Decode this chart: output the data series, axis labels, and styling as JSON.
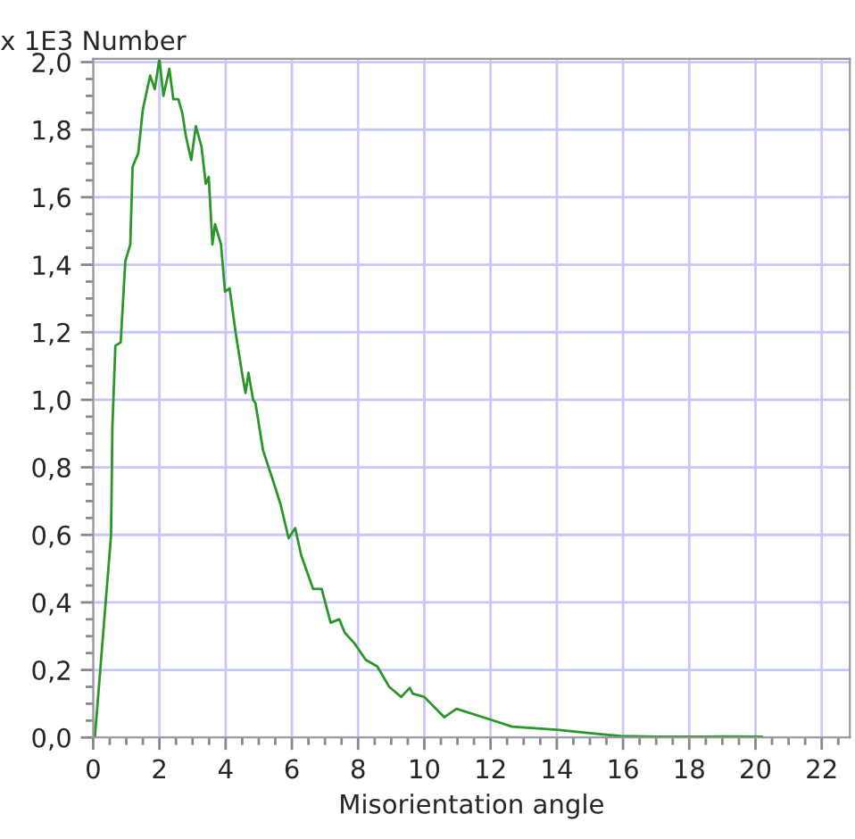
{
  "chart_data": {
    "type": "line",
    "xlabel": "Misorientation angle",
    "ylabel": "x 1E3 Number",
    "x": [
      0,
      0.05,
      0.54,
      0.58,
      0.67,
      0.83,
      0.97,
      1.12,
      1.19,
      1.36,
      1.5,
      1.72,
      1.86,
      2.0,
      2.12,
      2.3,
      2.42,
      2.57,
      2.69,
      2.8,
      2.96,
      3.1,
      3.27,
      3.4,
      3.49,
      3.6,
      3.68,
      3.86,
      3.98,
      4.12,
      4.3,
      4.51,
      4.6,
      4.69,
      4.83,
      4.9,
      5.13,
      5.4,
      5.66,
      5.9,
      6.1,
      6.28,
      6.64,
      6.9,
      7.17,
      7.43,
      7.6,
      7.88,
      8.23,
      8.58,
      8.94,
      9.3,
      9.56,
      9.65,
      10.0,
      10.6,
      10.97,
      12.0,
      12.65,
      14.0,
      15.2,
      15.93,
      17.0,
      18.4,
      19.1,
      20.2
    ],
    "series": [
      {
        "color": "#2a962a",
        "values": [
          0.0,
          0.0,
          0.6,
          0.92,
          1.16,
          1.17,
          1.41,
          1.46,
          1.69,
          1.73,
          1.86,
          1.96,
          1.92,
          2.01,
          1.9,
          1.98,
          1.89,
          1.89,
          1.85,
          1.78,
          1.71,
          1.81,
          1.75,
          1.64,
          1.66,
          1.46,
          1.52,
          1.46,
          1.32,
          1.33,
          1.2,
          1.07,
          1.02,
          1.08,
          1.0,
          0.99,
          0.85,
          0.77,
          0.69,
          0.59,
          0.62,
          0.54,
          0.44,
          0.44,
          0.34,
          0.35,
          0.31,
          0.28,
          0.23,
          0.21,
          0.15,
          0.12,
          0.147,
          0.13,
          0.12,
          0.06,
          0.085,
          0.053,
          0.032,
          0.023,
          0.011,
          0.004,
          0.002,
          0.002,
          0.003,
          0.002
        ]
      }
    ],
    "xlim": [
      0,
      22.85
    ],
    "ylim": [
      0,
      2.01
    ],
    "xticks": [
      0,
      {
        "value": 0.5,
        "label": null
      },
      {
        "value": 1,
        "label": null
      },
      {
        "value": 1.5,
        "label": null
      },
      2,
      {
        "value": 2.5,
        "label": null
      },
      {
        "value": 3,
        "label": null
      },
      {
        "value": 3.5,
        "label": null
      },
      4,
      {
        "value": 4.5,
        "label": null
      },
      {
        "value": 5,
        "label": null
      },
      {
        "value": 5.5,
        "label": null
      },
      6,
      {
        "value": 6.5,
        "label": null
      },
      {
        "value": 7,
        "label": null
      },
      {
        "value": 7.5,
        "label": null
      },
      8,
      {
        "value": 8.5,
        "label": null
      },
      {
        "value": 9,
        "label": null
      },
      {
        "value": 9.5,
        "label": null
      },
      10,
      {
        "value": 10.5,
        "label": null
      },
      {
        "value": 11,
        "label": null
      },
      {
        "value": 11.5,
        "label": null
      },
      12,
      {
        "value": 12.5,
        "label": null
      },
      {
        "value": 13,
        "label": null
      },
      {
        "value": 13.5,
        "label": null
      },
      14,
      {
        "value": 14.5,
        "label": null
      },
      {
        "value": 15,
        "label": null
      },
      {
        "value": 15.5,
        "label": null
      },
      16,
      {
        "value": 16.5,
        "label": null
      },
      {
        "value": 17,
        "label": null
      },
      {
        "value": 17.5,
        "label": null
      },
      18,
      {
        "value": 18.5,
        "label": null
      },
      {
        "value": 19,
        "label": null
      },
      {
        "value": 19.5,
        "label": null
      },
      20,
      {
        "value": 20.5,
        "label": null
      },
      {
        "value": 21,
        "label": null
      },
      {
        "value": 21.5,
        "label": null
      },
      22,
      {
        "value": 22.5,
        "label": null
      }
    ],
    "yticks": [
      {
        "value": 0,
        "label": "0,0"
      },
      {
        "value": 0.05,
        "label": null
      },
      {
        "value": 0.1,
        "label": null
      },
      {
        "value": 0.15,
        "label": null
      },
      {
        "value": 0.2,
        "label": "0,2"
      },
      {
        "value": 0.25,
        "label": null
      },
      {
        "value": 0.3,
        "label": null
      },
      {
        "value": 0.35,
        "label": null
      },
      {
        "value": 0.4,
        "label": "0,4"
      },
      {
        "value": 0.45,
        "label": null
      },
      {
        "value": 0.5,
        "label": null
      },
      {
        "value": 0.55,
        "label": null
      },
      {
        "value": 0.6,
        "label": "0,6"
      },
      {
        "value": 0.65,
        "label": null
      },
      {
        "value": 0.7,
        "label": null
      },
      {
        "value": 0.75,
        "label": null
      },
      {
        "value": 0.8,
        "label": "0,8"
      },
      {
        "value": 0.85,
        "label": null
      },
      {
        "value": 0.9,
        "label": null
      },
      {
        "value": 0.95,
        "label": null
      },
      {
        "value": 1.0,
        "label": "1,0"
      },
      {
        "value": 1.05,
        "label": null
      },
      {
        "value": 1.1,
        "label": null
      },
      {
        "value": 1.15,
        "label": null
      },
      {
        "value": 1.2,
        "label": "1,2"
      },
      {
        "value": 1.25,
        "label": null
      },
      {
        "value": 1.3,
        "label": null
      },
      {
        "value": 1.35,
        "label": null
      },
      {
        "value": 1.4,
        "label": "1,4"
      },
      {
        "value": 1.45,
        "label": null
      },
      {
        "value": 1.5,
        "label": null
      },
      {
        "value": 1.55,
        "label": null
      },
      {
        "value": 1.6,
        "label": "1,6"
      },
      {
        "value": 1.65,
        "label": null
      },
      {
        "value": 1.7,
        "label": null
      },
      {
        "value": 1.75,
        "label": null
      },
      {
        "value": 1.8,
        "label": "1,8"
      },
      {
        "value": 1.85,
        "label": null
      },
      {
        "value": 1.9,
        "label": null
      },
      {
        "value": 1.95,
        "label": null
      },
      {
        "value": 2.0,
        "label": "2,0"
      }
    ],
    "grid": true
  }
}
